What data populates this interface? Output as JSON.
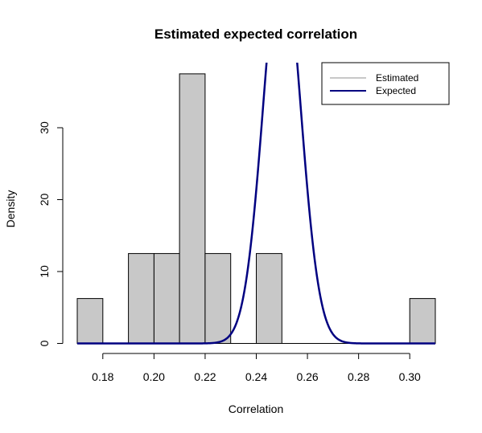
{
  "chart_data": {
    "type": "histogram",
    "title": "Estimated expected correlation",
    "xlabel": "Correlation",
    "ylabel": "Density",
    "xlim": [
      0.17,
      0.31
    ],
    "ylim": [
      0,
      38
    ],
    "xticks": [
      0.18,
      0.2,
      0.22,
      0.24,
      0.26,
      0.28,
      0.3
    ],
    "xtick_labels": [
      "0.18",
      "0.20",
      "0.22",
      "0.24",
      "0.26",
      "0.28",
      "0.30"
    ],
    "yticks": [
      0,
      10,
      20,
      30
    ],
    "ytick_labels": [
      "0",
      "10",
      "20",
      "30"
    ],
    "grid": false,
    "legend_position": "top-right",
    "legend": [
      {
        "label": "Estimated",
        "color": "#c8c8c8"
      },
      {
        "label": "Expected",
        "color": "#000080"
      }
    ],
    "histogram": {
      "bins": [
        {
          "start": 0.17,
          "end": 0.18,
          "density": 6.25
        },
        {
          "start": 0.18,
          "end": 0.19,
          "density": 0
        },
        {
          "start": 0.19,
          "end": 0.2,
          "density": 12.5
        },
        {
          "start": 0.2,
          "end": 0.21,
          "density": 12.5
        },
        {
          "start": 0.21,
          "end": 0.22,
          "density": 37.5
        },
        {
          "start": 0.22,
          "end": 0.23,
          "density": 12.5
        },
        {
          "start": 0.23,
          "end": 0.24,
          "density": 0
        },
        {
          "start": 0.24,
          "end": 0.25,
          "density": 12.5
        },
        {
          "start": 0.25,
          "end": 0.26,
          "density": 0
        },
        {
          "start": 0.26,
          "end": 0.27,
          "density": 0
        },
        {
          "start": 0.27,
          "end": 0.28,
          "density": 0
        },
        {
          "start": 0.28,
          "end": 0.29,
          "density": 0
        },
        {
          "start": 0.29,
          "end": 0.3,
          "density": 0
        },
        {
          "start": 0.3,
          "end": 0.31,
          "density": 6.25
        }
      ],
      "fill_color": "#c8c8c8",
      "edge_color": "#000000"
    },
    "curve": {
      "name": "Expected",
      "distribution": "normal",
      "mean": 0.25,
      "sd": 0.0073,
      "color": "#000080"
    }
  }
}
